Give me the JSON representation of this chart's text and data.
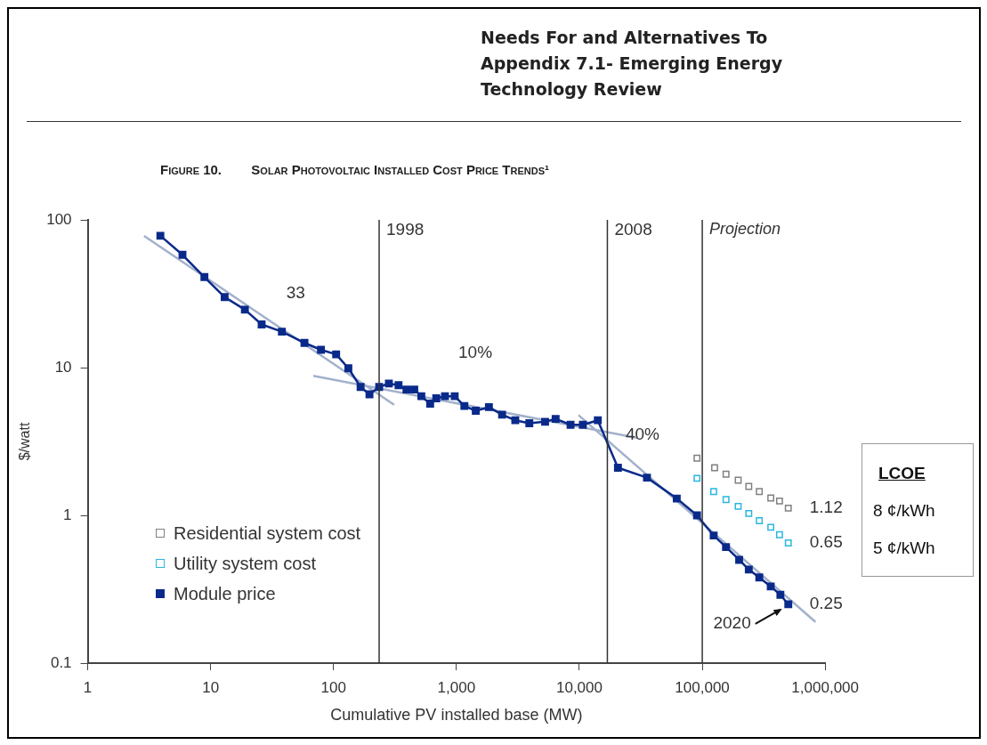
{
  "chart_data": {
    "type": "scatter",
    "title": "Needs For and Alternatives To Appendix 7.1- Emerging Energy Technology Review",
    "subtitle": "Figure 10.        Solar Photovoltaic Installed Cost Price Trends¹",
    "xlabel": "Cumulative PV installed base (MW)",
    "ylabel": "$/watt",
    "log": "xy",
    "xlim": [
      1,
      1000000
    ],
    "ylim": [
      0.1,
      100
    ],
    "xticks": [
      1,
      10,
      100,
      {
        "value": 1000,
        "label": "1,000"
      },
      {
        "value": 10000,
        "label": "10,000"
      },
      {
        "value": 100000,
        "label": "100,000"
      },
      {
        "value": 1000000,
        "label": "1,000,000"
      }
    ],
    "yticks": [
      0.1,
      1,
      10,
      100
    ],
    "grid": false,
    "legend": "bottom left",
    "series": [
      {
        "name": "Residential system cost",
        "type": "scatter",
        "marker": "square",
        "color": "#808080",
        "x": [
          90600,
          126000,
          156000,
          196000,
          239000,
          291000,
          361000,
          425000,
          501000
        ],
        "values": [
          2.44,
          2.1,
          1.9,
          1.73,
          1.57,
          1.45,
          1.31,
          1.25,
          1.12
        ],
        "value_labels": [
          null,
          null,
          null,
          null,
          null,
          null,
          null,
          null,
          "1.12"
        ]
      },
      {
        "name": "Utility system cost",
        "type": "scatter",
        "marker": "square",
        "color": "#29b6e0",
        "x": [
          90600,
          123800,
          156000,
          196000,
          239000,
          291000,
          361000,
          425000,
          501000
        ],
        "values": [
          1.78,
          1.45,
          1.28,
          1.15,
          1.03,
          0.92,
          0.83,
          0.74,
          0.65
        ],
        "value_labels": [
          null,
          null,
          null,
          null,
          null,
          null,
          null,
          null,
          "0.65"
        ]
      },
      {
        "name": "Module price",
        "type": "line",
        "marker": "square",
        "color": "#0a2a8a",
        "x": [
          3.9,
          5.9,
          8.9,
          13,
          19,
          26,
          38,
          58,
          79,
          105,
          132,
          166,
          196,
          235,
          282,
          338,
          392,
          454,
          518,
          611,
          685,
          807,
          968,
          1160,
          1436,
          1837,
          2351,
          3010,
          3917,
          5263,
          6412,
          8480,
          10680,
          14130,
          20600,
          35480,
          62000,
          90600,
          123800,
          156000,
          199500,
          239000,
          291000,
          360600,
          432000,
          501000
        ],
        "values": [
          78,
          58,
          41,
          30,
          24.7,
          19.6,
          17.5,
          14.7,
          13.2,
          12.3,
          9.9,
          7.4,
          6.6,
          7.4,
          7.8,
          7.6,
          7.1,
          7.1,
          6.4,
          5.7,
          6.2,
          6.4,
          6.4,
          5.5,
          5.1,
          5.4,
          4.8,
          4.4,
          4.2,
          4.3,
          4.5,
          4.1,
          4.1,
          4.4,
          2.1,
          1.8,
          1.3,
          1.0,
          0.73,
          0.61,
          0.5,
          0.43,
          0.38,
          0.33,
          0.29,
          0.25
        ],
        "value_labels": [
          null,
          null,
          null,
          null,
          null,
          null,
          null,
          null,
          null,
          null,
          null,
          null,
          null,
          null,
          null,
          null,
          null,
          null,
          null,
          null,
          null,
          null,
          null,
          null,
          null,
          null,
          null,
          null,
          null,
          null,
          null,
          null,
          null,
          null,
          null,
          null,
          null,
          null,
          null,
          null,
          null,
          null,
          null,
          null,
          null,
          "0.25"
        ]
      },
      {
        "type": "line",
        "marker": "none",
        "color": "#a3b1cc",
        "x": [
          2.87,
          311
        ],
        "values": [
          78,
          5.6
        ]
      },
      {
        "type": "line",
        "marker": "none",
        "color": "#a3b1cc",
        "x": [
          68.5,
          29600
        ],
        "values": [
          8.8,
          3.34
        ]
      },
      {
        "type": "line",
        "marker": "none",
        "color": "#a3b1cc",
        "x": [
          9840,
          834000
        ],
        "values": [
          4.77,
          0.19
        ]
      }
    ],
    "ref_lines": [
      {
        "axis": "x",
        "value": 235,
        "color": "#333333"
      },
      {
        "axis": "x",
        "value": 16900,
        "color": "#333333"
      },
      {
        "axis": "x",
        "value": 100000,
        "label": "Projection",
        "color": "#333333"
      }
    ],
    "annotations": [
      {
        "text": "1998",
        "x": 235,
        "y": 100
      },
      {
        "text": "2008",
        "x": 16900,
        "y": 100
      },
      "33",
      "10%",
      "40%",
      {
        "text": "2020",
        "x": 501000,
        "y": 0.25
      },
      "LCOE",
      "8 ¢/kWh",
      "5 ¢/kWh"
    ]
  }
}
